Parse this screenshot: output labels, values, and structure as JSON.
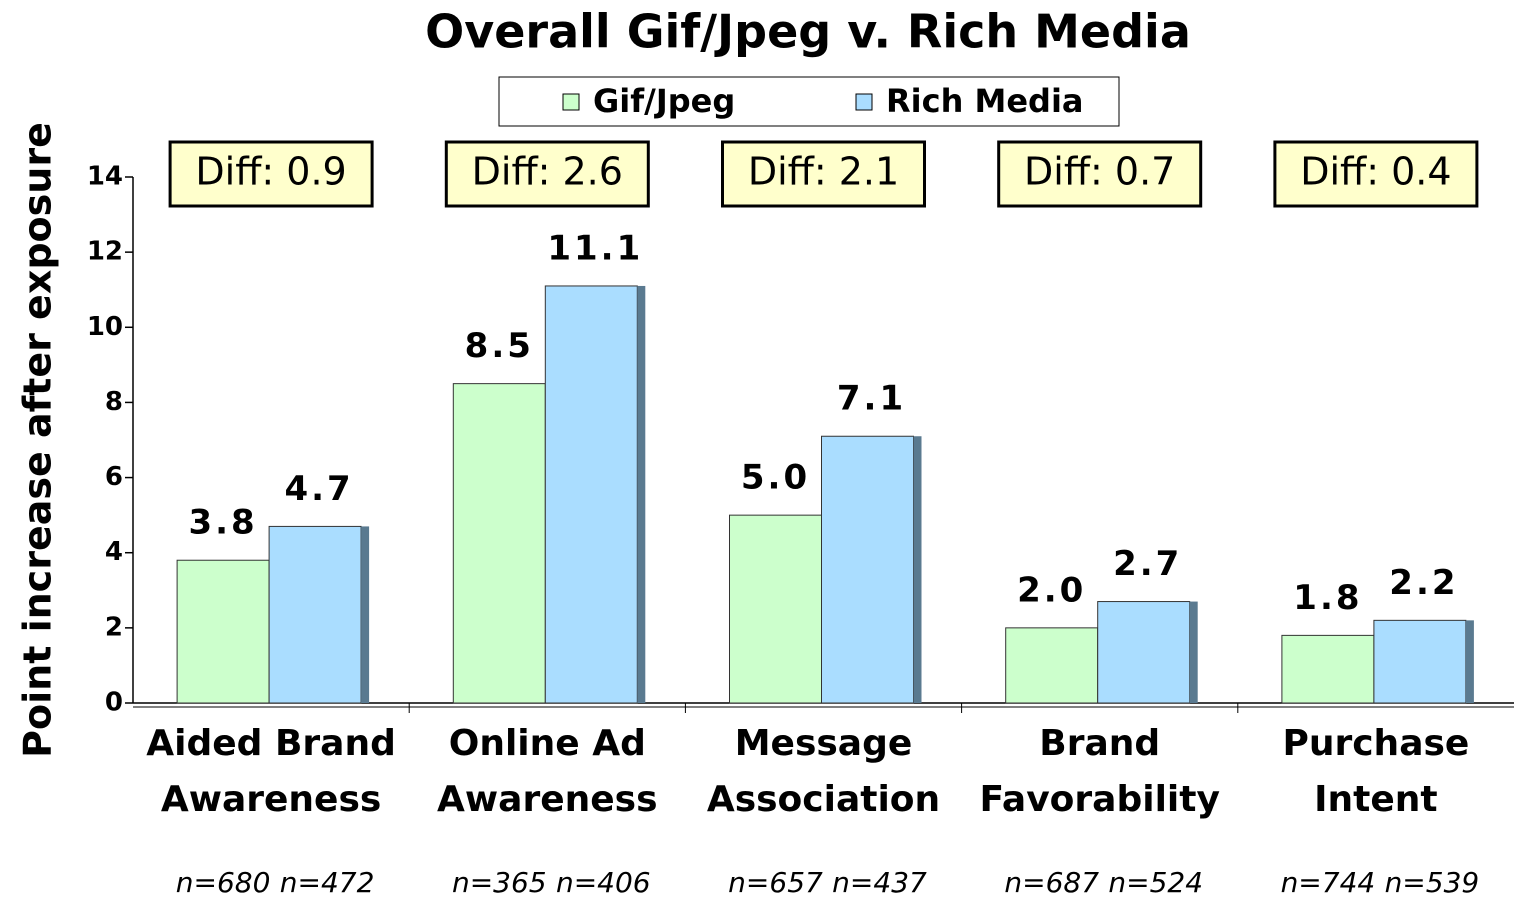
{
  "chart_data": {
    "type": "bar",
    "title": "Overall Gif/Jpeg v. Rich Media",
    "y_label": "Point increase after exposure",
    "categories": [
      [
        "Aided Brand",
        "Awareness"
      ],
      [
        "Online Ad",
        "Awareness"
      ],
      [
        "Message",
        "Association"
      ],
      [
        "Brand",
        "Favorability"
      ],
      [
        "Purchase",
        "Intent"
      ]
    ],
    "series": [
      {
        "name": "Gif/Jpeg",
        "color": "#ccffcc",
        "values": [
          3.8,
          8.5,
          5.0,
          2.0,
          1.8
        ],
        "value_labels": [
          "3.8",
          "8.5",
          "5.0",
          "2.0",
          "1.8"
        ]
      },
      {
        "name": "Rich Media",
        "color": "#aaddff",
        "values": [
          4.7,
          11.1,
          7.1,
          2.7,
          2.2
        ],
        "value_labels": [
          "4.7",
          "11.1",
          "7.1",
          "2.7",
          "2.2"
        ]
      }
    ],
    "annotations": [
      "Diff: 0.9",
      "Diff: 2.6",
      "Diff: 2.1",
      "Diff: 0.7",
      "Diff: 0.4"
    ],
    "sample_sizes": [
      [
        "n=680",
        "n=472"
      ],
      [
        "n=365",
        "n=406"
      ],
      [
        "n=657",
        "n=437"
      ],
      [
        "n=687",
        "n=524"
      ],
      [
        "n=744",
        "n=539"
      ]
    ],
    "ylim": [
      0,
      14
    ],
    "yticks": [
      0,
      2,
      4,
      6,
      8,
      10,
      12,
      14
    ],
    "legend": "top"
  }
}
